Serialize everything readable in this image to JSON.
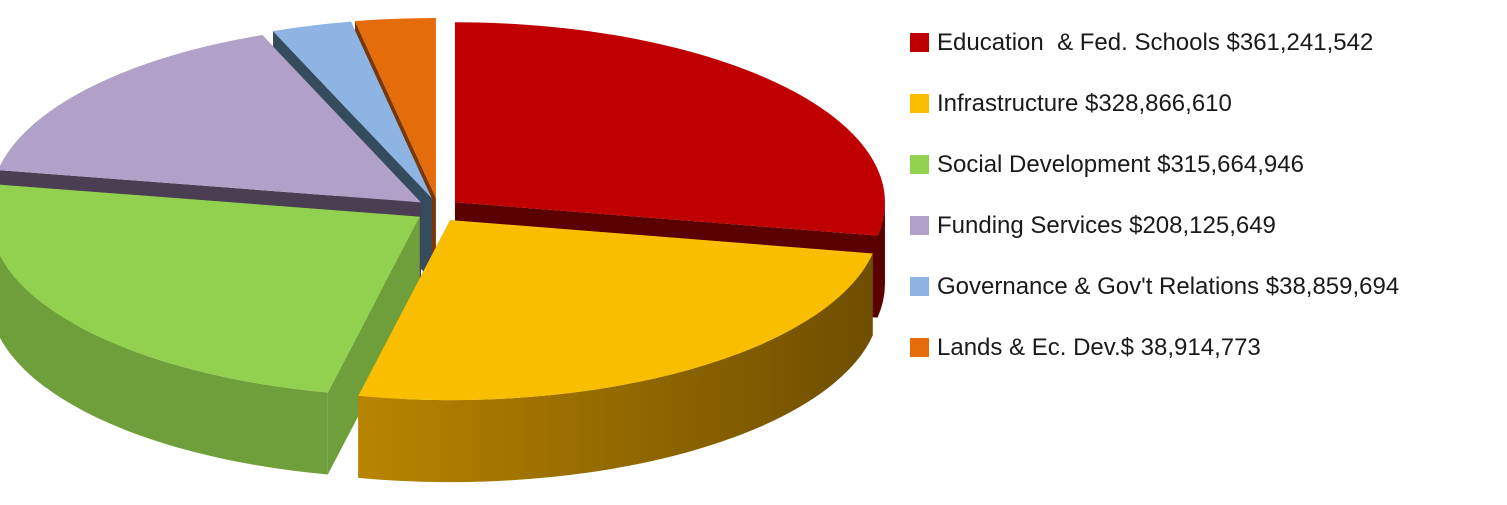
{
  "chart_data": {
    "type": "pie",
    "title": "",
    "legend_position": "right",
    "slices": [
      {
        "label": "Education  & Fed. Schools $361,241,542",
        "value": 361241542,
        "color": "#C00000",
        "side_color": "#5A0000"
      },
      {
        "label": "Infrastructure $328,866,610",
        "value": 328866610,
        "color": "#F9BE00",
        "side_color": "#9A6E00"
      },
      {
        "label": "Social Development $315,664,946",
        "value": 315664946,
        "color": "#92D050",
        "side_color": "#6E9F3A"
      },
      {
        "label": "Funding Services $208,125,649",
        "value": 208125649,
        "color": "#B1A0C7",
        "side_color": "#4A3E52"
      },
      {
        "label": "Governance & Gov't Relations $38,859,694",
        "value": 38859694,
        "color": "#8DB4E2",
        "side_color": "#354B5E"
      },
      {
        "label": "Lands & Ec. Dev.$ 38,914,773",
        "value": 38914773,
        "color": "#E46C0A",
        "side_color": "#7A3603"
      }
    ]
  }
}
